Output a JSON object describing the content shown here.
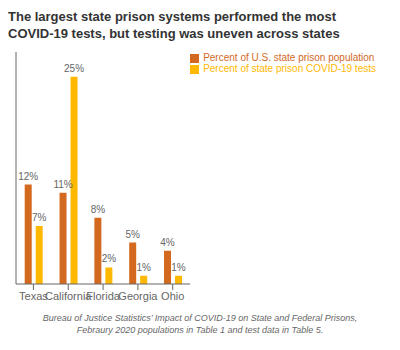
{
  "chart_data": {
    "type": "bar",
    "title": "The largest state prison systems performed the most\nCOVID-19 tests, but testing was uneven across states",
    "categories": [
      "Texas",
      "California",
      "Florida",
      "Georgia",
      "Ohio"
    ],
    "series": [
      {
        "name": "Percent of U.S. state prison population",
        "color": "#D2691E",
        "values": [
          12,
          11,
          8,
          5,
          4
        ],
        "value_labels": [
          "12%",
          "11%",
          "8%",
          "5%",
          "4%"
        ]
      },
      {
        "name": "Percent of state prison COVID-19 tests",
        "color": "#FFB800",
        "values": [
          7,
          25,
          2,
          1,
          1
        ],
        "value_labels": [
          "7%",
          "25%",
          "2%",
          "1%",
          "1%"
        ]
      }
    ],
    "ylim": [
      0,
      28
    ],
    "data_labels": true,
    "tick_labels": "x",
    "legend": "upper right",
    "grid": false,
    "footnote": "Bureau of Justice Statistics’ Impact of COVID-19 on State and Federal Prisons,\nFebraury 2020 populations in Table 1 and test data in Table 5."
  }
}
